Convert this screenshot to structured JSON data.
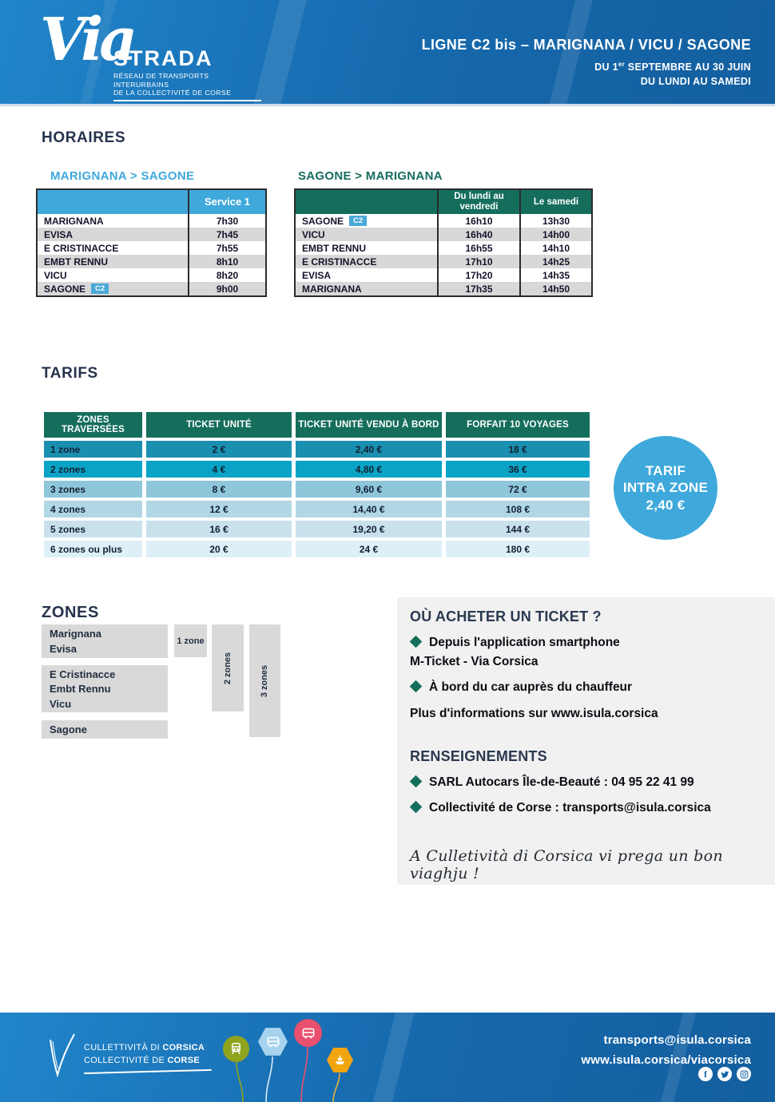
{
  "colors": {
    "header_blue": "#1873b9",
    "accent_blue": "#3fa9dc",
    "dark_green": "#156e5c",
    "row_gray": "#d8d8d8",
    "panel_gray": "#f1f1f1",
    "tarif_row_colors": [
      "#1b8fb0",
      "#0aa3c6",
      "#8fc6da",
      "#b1d7e5",
      "#c8e1ed",
      "#def0f7"
    ]
  },
  "header": {
    "logo_script": "Via",
    "logo_name": "STRADA",
    "tagline1": "RÉSEAU DE TRANSPORTS INTERURBAINS",
    "tagline2": "DE LA COLLECTIVITÉ DE CORSE",
    "line_title": "LIGNE C2 bis – MARIGNANA / VICU / SAGONE",
    "period_pre": "DU 1",
    "period_sup": "er",
    "period_post": " SEPTEMBRE AU 30 JUIN",
    "days": "DU LUNDI AU SAMEDI"
  },
  "horaires": {
    "title": "HORAIRES",
    "outbound": {
      "caption": "MARIGNANA > SAGONE",
      "service_header": "Service 1",
      "rows": [
        {
          "stop": "MARIGNANA",
          "badge": "",
          "time": "7h30"
        },
        {
          "stop": "EVISA",
          "badge": "",
          "time": "7h45"
        },
        {
          "stop": "E CRISTINACCE",
          "badge": "",
          "time": "7h55"
        },
        {
          "stop": "EMBT RENNU",
          "badge": "",
          "time": "8h10"
        },
        {
          "stop": "VICU",
          "badge": "",
          "time": "8h20"
        },
        {
          "stop": "SAGONE",
          "badge": "C2",
          "time": "9h00"
        }
      ]
    },
    "inbound": {
      "caption": "SAGONE > MARIGNANA",
      "col1": "Du lundi au vendredi",
      "col2": "Le samedi",
      "rows": [
        {
          "stop": "SAGONE",
          "badge": "C2",
          "times": [
            "16h10",
            "13h30"
          ]
        },
        {
          "stop": "VICU",
          "badge": "",
          "times": [
            "16h40",
            "14h00"
          ]
        },
        {
          "stop": "EMBT RENNU",
          "badge": "",
          "times": [
            "16h55",
            "14h10"
          ]
        },
        {
          "stop": "E CRISTINACCE",
          "badge": "",
          "times": [
            "17h10",
            "14h25"
          ]
        },
        {
          "stop": "EVISA",
          "badge": "",
          "times": [
            "17h20",
            "14h35"
          ]
        },
        {
          "stop": "MARIGNANA",
          "badge": "",
          "times": [
            "17h35",
            "14h50"
          ]
        }
      ]
    }
  },
  "tarifs": {
    "title": "TARIFS",
    "columns": [
      "ZONES TRAVERSÉES",
      "TICKET UNITÉ",
      "TICKET UNITÉ VENDU À BORD",
      "FORFAIT 10 VOYAGES"
    ],
    "rows": [
      {
        "zone": "1 zone",
        "values": [
          "2 €",
          "2,40 €",
          "18 €"
        ]
      },
      {
        "zone": "2 zones",
        "values": [
          "4 €",
          "4,80 €",
          "36 €"
        ]
      },
      {
        "zone": "3 zones",
        "values": [
          "8 €",
          "9,60 €",
          "72 €"
        ]
      },
      {
        "zone": "4 zones",
        "values": [
          "12 €",
          "14,40 €",
          "108 €"
        ]
      },
      {
        "zone": "5 zones",
        "values": [
          "16 €",
          "19,20 €",
          "144 €"
        ]
      },
      {
        "zone": "6 zones ou plus",
        "values": [
          "20 €",
          "24 €",
          "180 €"
        ]
      }
    ],
    "intra_zone": [
      "TARIF",
      "INTRA ZONE",
      "2,40 €"
    ]
  },
  "zones": {
    "title": "ZONES",
    "groups": [
      [
        "Marignana",
        "Evisa"
      ],
      [
        "E Cristinacce",
        "Embt Rennu",
        "Vicu"
      ],
      [
        "Sagone"
      ]
    ],
    "labels": [
      "1 zone",
      "2 zones",
      "3 zones"
    ]
  },
  "panel": {
    "buy_title": "OÙ ACHETER UN TICKET ?",
    "buy1_l1": "Depuis l'application smartphone",
    "buy1_l2": "M-Ticket - Via Corsica",
    "buy2": "À bord du car auprès du chauffeur",
    "more": "Plus d'informations sur www.isula.corsica",
    "info_title": "RENSEIGNEMENTS",
    "contact1": "SARL Autocars Île-de-Beauté : 04 95 22 41 99",
    "contact2": "Collectivité de Corse : transports@isula.corsica",
    "slogan": "A Culletività di Corsica vi prega un bon viaghju !"
  },
  "footer": {
    "org_l1_light": "CULLETTIVITÀ DI ",
    "org_l1_bold": "CORSICA",
    "org_l2_light": "COLLECTIVITÉ DE ",
    "org_l2_bold": "CORSE",
    "email": "transports@isula.corsica",
    "website": "www.isula.corsica/viacorsica",
    "social": [
      "facebook",
      "twitter",
      "instagram"
    ],
    "transport_icons": [
      "train",
      "bus",
      "coach",
      "ferry"
    ]
  }
}
